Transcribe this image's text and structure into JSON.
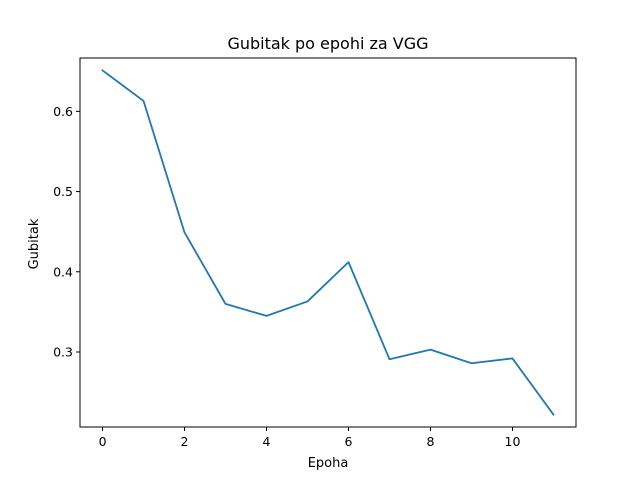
{
  "chart_data": {
    "type": "line",
    "title": "Gubitak po epohi za VGG",
    "xlabel": "Epoha",
    "ylabel": "Gubitak",
    "xlim": [
      -0.55,
      11.55
    ],
    "ylim": [
      0.2065,
      0.6665
    ],
    "xticks": [
      0,
      2,
      4,
      6,
      8,
      10
    ],
    "yticks": [
      0.3,
      0.4,
      0.5,
      0.6
    ],
    "xtick_labels": [
      "0",
      "2",
      "4",
      "6",
      "8",
      "10"
    ],
    "ytick_labels": [
      "0.3",
      "0.4",
      "0.5",
      "0.6"
    ],
    "grid": false,
    "series": [
      {
        "color": "#1f77b4",
        "x": [
          0,
          1,
          2,
          3,
          4,
          5,
          6,
          7,
          8,
          9,
          10,
          11
        ],
        "y": [
          0.651,
          0.613,
          0.449,
          0.36,
          0.345,
          0.363,
          0.412,
          0.291,
          0.303,
          0.286,
          0.292,
          0.222
        ]
      }
    ]
  }
}
